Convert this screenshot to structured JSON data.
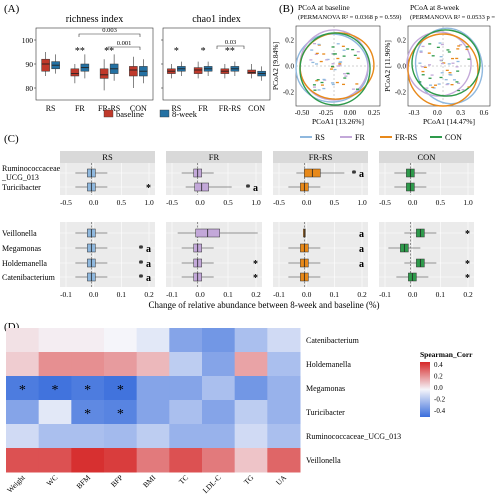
{
  "panel_letters": {
    "a": "(A)",
    "b": "(B)",
    "c": "(C)",
    "d": "(D)"
  },
  "colors": {
    "baseline": "#c0392b",
    "week8": "#2471a3",
    "RS": "#8fb8de",
    "FR": "#c3a8d9",
    "FR-RS": "#e8891a",
    "CON": "#2e9a4b",
    "strip": "#d9d9d9",
    "panel_bg": "#ebebeb"
  },
  "panel_a": {
    "richness_title": "richness index",
    "chao1_title": "chao1 index",
    "yticks": [
      "80",
      "90",
      "100"
    ],
    "groups": [
      "RS",
      "FR",
      "FR-RS",
      "CON"
    ],
    "richness_stars": [
      "",
      "**",
      "**",
      ""
    ],
    "chao1_stars": [
      "*",
      "*",
      "**",
      ""
    ],
    "richness_brackets": [
      "0.003",
      "0.001"
    ],
    "chao1_bracket": "0.03",
    "legend": [
      "baseline",
      "8-week"
    ]
  },
  "panel_b": {
    "left_title": "PCoA at baseline",
    "left_subtitle": "(PERMANOVA R² = 0.0368 p = 0.559)",
    "right_title": "PCoA at 8-week",
    "right_subtitle": "(PERMANOVA R² = 0.0533 p = 0.02)",
    "left_xlabel": "PCoA1 [13.26%]",
    "left_ylabel": "PCoA2 [9.84%]",
    "right_xlabel": "PCoA1 [14.47%]",
    "right_ylabel": "PCoA2 [11.96%]",
    "left_xticks": [
      "-0.50",
      "-0.25",
      "0.00",
      "0.25"
    ],
    "left_yticks": [
      "-0.2",
      "0.0",
      "0.2"
    ],
    "right_xticks": [
      "-0.3",
      "0.0",
      "0.3",
      "0.6"
    ],
    "right_yticks": [
      "-0.2",
      "0.0",
      "0.2"
    ],
    "legend": [
      "RS",
      "FR",
      "FR-RS",
      "CON"
    ]
  },
  "panel_c": {
    "strips": [
      "RS",
      "FR",
      "FR-RS",
      "CON"
    ],
    "top_taxa": [
      "Ruminococcaceae\n_UCG_013",
      "Turicibacter"
    ],
    "bottom_taxa": [
      "Veillonella",
      "Megamonas",
      "Holdemanella",
      "Catenibacterium"
    ],
    "top_ticks": [
      "-0.5",
      "0.0",
      "0.5",
      "1.0"
    ],
    "bottom_ticks": [
      "-0.1",
      "0.0",
      "0.1",
      "0.2"
    ],
    "xlabel": "Change of relative abundance between 8-week and baseline (%)",
    "annotations": [
      {
        "text": "*",
        "panel": 0,
        "row": "Turicibacter"
      },
      {
        "text": "* a",
        "panel": 1,
        "row": "Turicibacter"
      },
      {
        "text": "* a",
        "panel": 2,
        "row": "Ruminococcaceae"
      },
      {
        "text": "a",
        "panel": 2,
        "row": "Veillonella"
      },
      {
        "text": "*",
        "panel": 3,
        "row": "Veillonella"
      },
      {
        "text": "* a",
        "panel": 0,
        "row": "Megamonas"
      },
      {
        "text": "* a",
        "panel": 0,
        "row": "Holdemanella"
      },
      {
        "text": "* a",
        "panel": 0,
        "row": "Catenibacterium"
      },
      {
        "text": "*",
        "panel": 1,
        "row": "Holdemanella"
      },
      {
        "text": "*",
        "panel": 1,
        "row": "Catenibacterium"
      },
      {
        "text": "a",
        "panel": 2,
        "row": "Megamonas"
      },
      {
        "text": "a",
        "panel": 2,
        "row": "Holdemanella"
      },
      {
        "text": "*",
        "panel": 3,
        "row": "Holdemanella"
      },
      {
        "text": "*",
        "panel": 3,
        "row": "Catenibacterium"
      }
    ]
  },
  "chart_data": {
    "type": "heatmap",
    "columns": [
      "Weight",
      "WC",
      "BFM",
      "BFP",
      "BMI",
      "TC",
      "LDL-C",
      "TG",
      "UA"
    ],
    "rows": [
      "Catenibacterium",
      "Holdemanella",
      "Megamonas",
      "Turicibacter",
      "Ruminococcaceae_UCG_013",
      "Veillonella"
    ],
    "values": [
      [
        0.05,
        0.02,
        0.02,
        0.0,
        -0.05,
        -0.3,
        -0.35,
        -0.2,
        -0.1
      ],
      [
        0.1,
        0.25,
        0.25,
        0.22,
        0.15,
        -0.15,
        -0.3,
        0.2,
        -0.2
      ],
      [
        -0.45,
        -0.48,
        -0.45,
        -0.48,
        -0.3,
        -0.3,
        -0.2,
        -0.35,
        -0.25
      ],
      [
        -0.3,
        -0.05,
        -0.4,
        -0.42,
        -0.3,
        -0.2,
        -0.3,
        -0.15,
        -0.25
      ],
      [
        -0.1,
        -0.2,
        -0.2,
        -0.22,
        -0.15,
        -0.25,
        -0.25,
        -0.1,
        -0.2
      ],
      [
        0.4,
        0.4,
        0.48,
        0.45,
        0.3,
        0.4,
        0.3,
        0.12,
        0.35
      ]
    ],
    "stars": [
      [
        2,
        0
      ],
      [
        2,
        1
      ],
      [
        2,
        2
      ],
      [
        2,
        3
      ],
      [
        3,
        2
      ],
      [
        3,
        3
      ]
    ],
    "legend_title": "Spearman_Corr",
    "legend_ticks": [
      "0.4",
      "0.2",
      "0.0",
      "-0.2",
      "-0.4"
    ],
    "range": [
      -0.5,
      0.5
    ]
  }
}
